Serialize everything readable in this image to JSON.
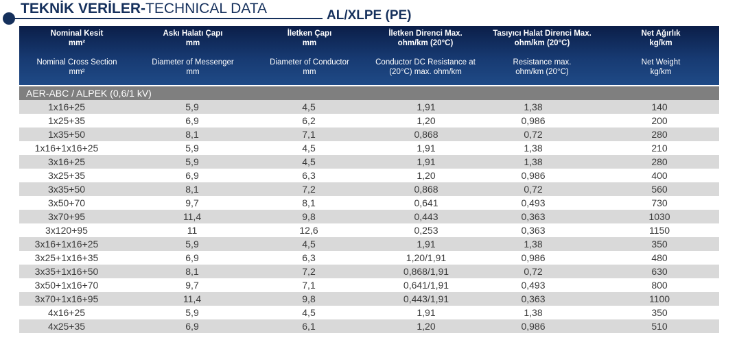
{
  "page": {
    "title_bold": "TEKNİK VERİLER-",
    "title_light": "TECHNICAL DATA",
    "subtitle": "AL/XLPE (PE)"
  },
  "table": {
    "headers": [
      {
        "tr": "Nominal Kesit",
        "tr_unit": "mm²",
        "en": "Nominal Cross Section",
        "en_unit": "mm²"
      },
      {
        "tr": "Askı Halatı Çapı",
        "tr_unit": "mm",
        "en": "Diameter of Messenger",
        "en_unit": "mm"
      },
      {
        "tr": "İletken Çapı",
        "tr_unit": "mm",
        "en": "Diameter of Conductor",
        "en_unit": "mm"
      },
      {
        "tr": "İletken Direnci Max.",
        "tr_unit": "ohm/km (20°C)",
        "en": "Conductor DC Resistance at",
        "en_unit": "(20°C) max. ohm/km"
      },
      {
        "tr": "Tasıyıcı Halat Direnci Max.",
        "tr_unit": "ohm/km (20°C)",
        "en": "Resistance max.",
        "en_unit": "ohm/km (20°C)"
      },
      {
        "tr": "Net Ağırlık",
        "tr_unit": "kg/km",
        "en": "Net Weight",
        "en_unit": "kg/km"
      }
    ],
    "section_label": "AER-ABC / ALPEK (0,6/1 kV)",
    "rows": [
      [
        "1x16+25",
        "5,9",
        "4,5",
        "1,91",
        "1,38",
        "140"
      ],
      [
        "1x25+35",
        "6,9",
        "6,2",
        "1,20",
        "0,986",
        "200"
      ],
      [
        "1x35+50",
        "8,1",
        "7,1",
        "0,868",
        "0,72",
        "280"
      ],
      [
        "1x16+1x16+25",
        "5,9",
        "4,5",
        "1,91",
        "1,38",
        "210"
      ],
      [
        "3x16+25",
        "5,9",
        "4,5",
        "1,91",
        "1,38",
        "280"
      ],
      [
        "3x25+35",
        "6,9",
        "6,3",
        "1,20",
        "0,986",
        "400"
      ],
      [
        "3x35+50",
        "8,1",
        "7,2",
        "0,868",
        "0,72",
        "560"
      ],
      [
        "3x50+70",
        "9,7",
        "8,1",
        "0,641",
        "0,493",
        "730"
      ],
      [
        "3x70+95",
        "11,4",
        "9,8",
        "0,443",
        "0,363",
        "1030"
      ],
      [
        "3x120+95",
        "11",
        "12,6",
        "0,253",
        "0,363",
        "1150"
      ],
      [
        "3x16+1x16+25",
        "5,9",
        "4,5",
        "1,91",
        "1,38",
        "350"
      ],
      [
        "3x25+1x16+35",
        "6,9",
        "6,3",
        "1,20/1,91",
        "0,986",
        "480"
      ],
      [
        "3x35+1x16+50",
        "8,1",
        "7,2",
        "0,868/1,91",
        "0,72",
        "630"
      ],
      [
        "3x50+1x16+70",
        "9,7",
        "7,1",
        "0,641/1,91",
        "0,493",
        "800"
      ],
      [
        "3x70+1x16+95",
        "11,4",
        "9,8",
        "0,443/1,91",
        "0,363",
        "1100"
      ],
      [
        "4x16+25",
        "5,9",
        "4,5",
        "1,91",
        "1,38",
        "350"
      ],
      [
        "4x25+35",
        "6,9",
        "6,1",
        "1,20",
        "0,986",
        "510"
      ]
    ]
  }
}
